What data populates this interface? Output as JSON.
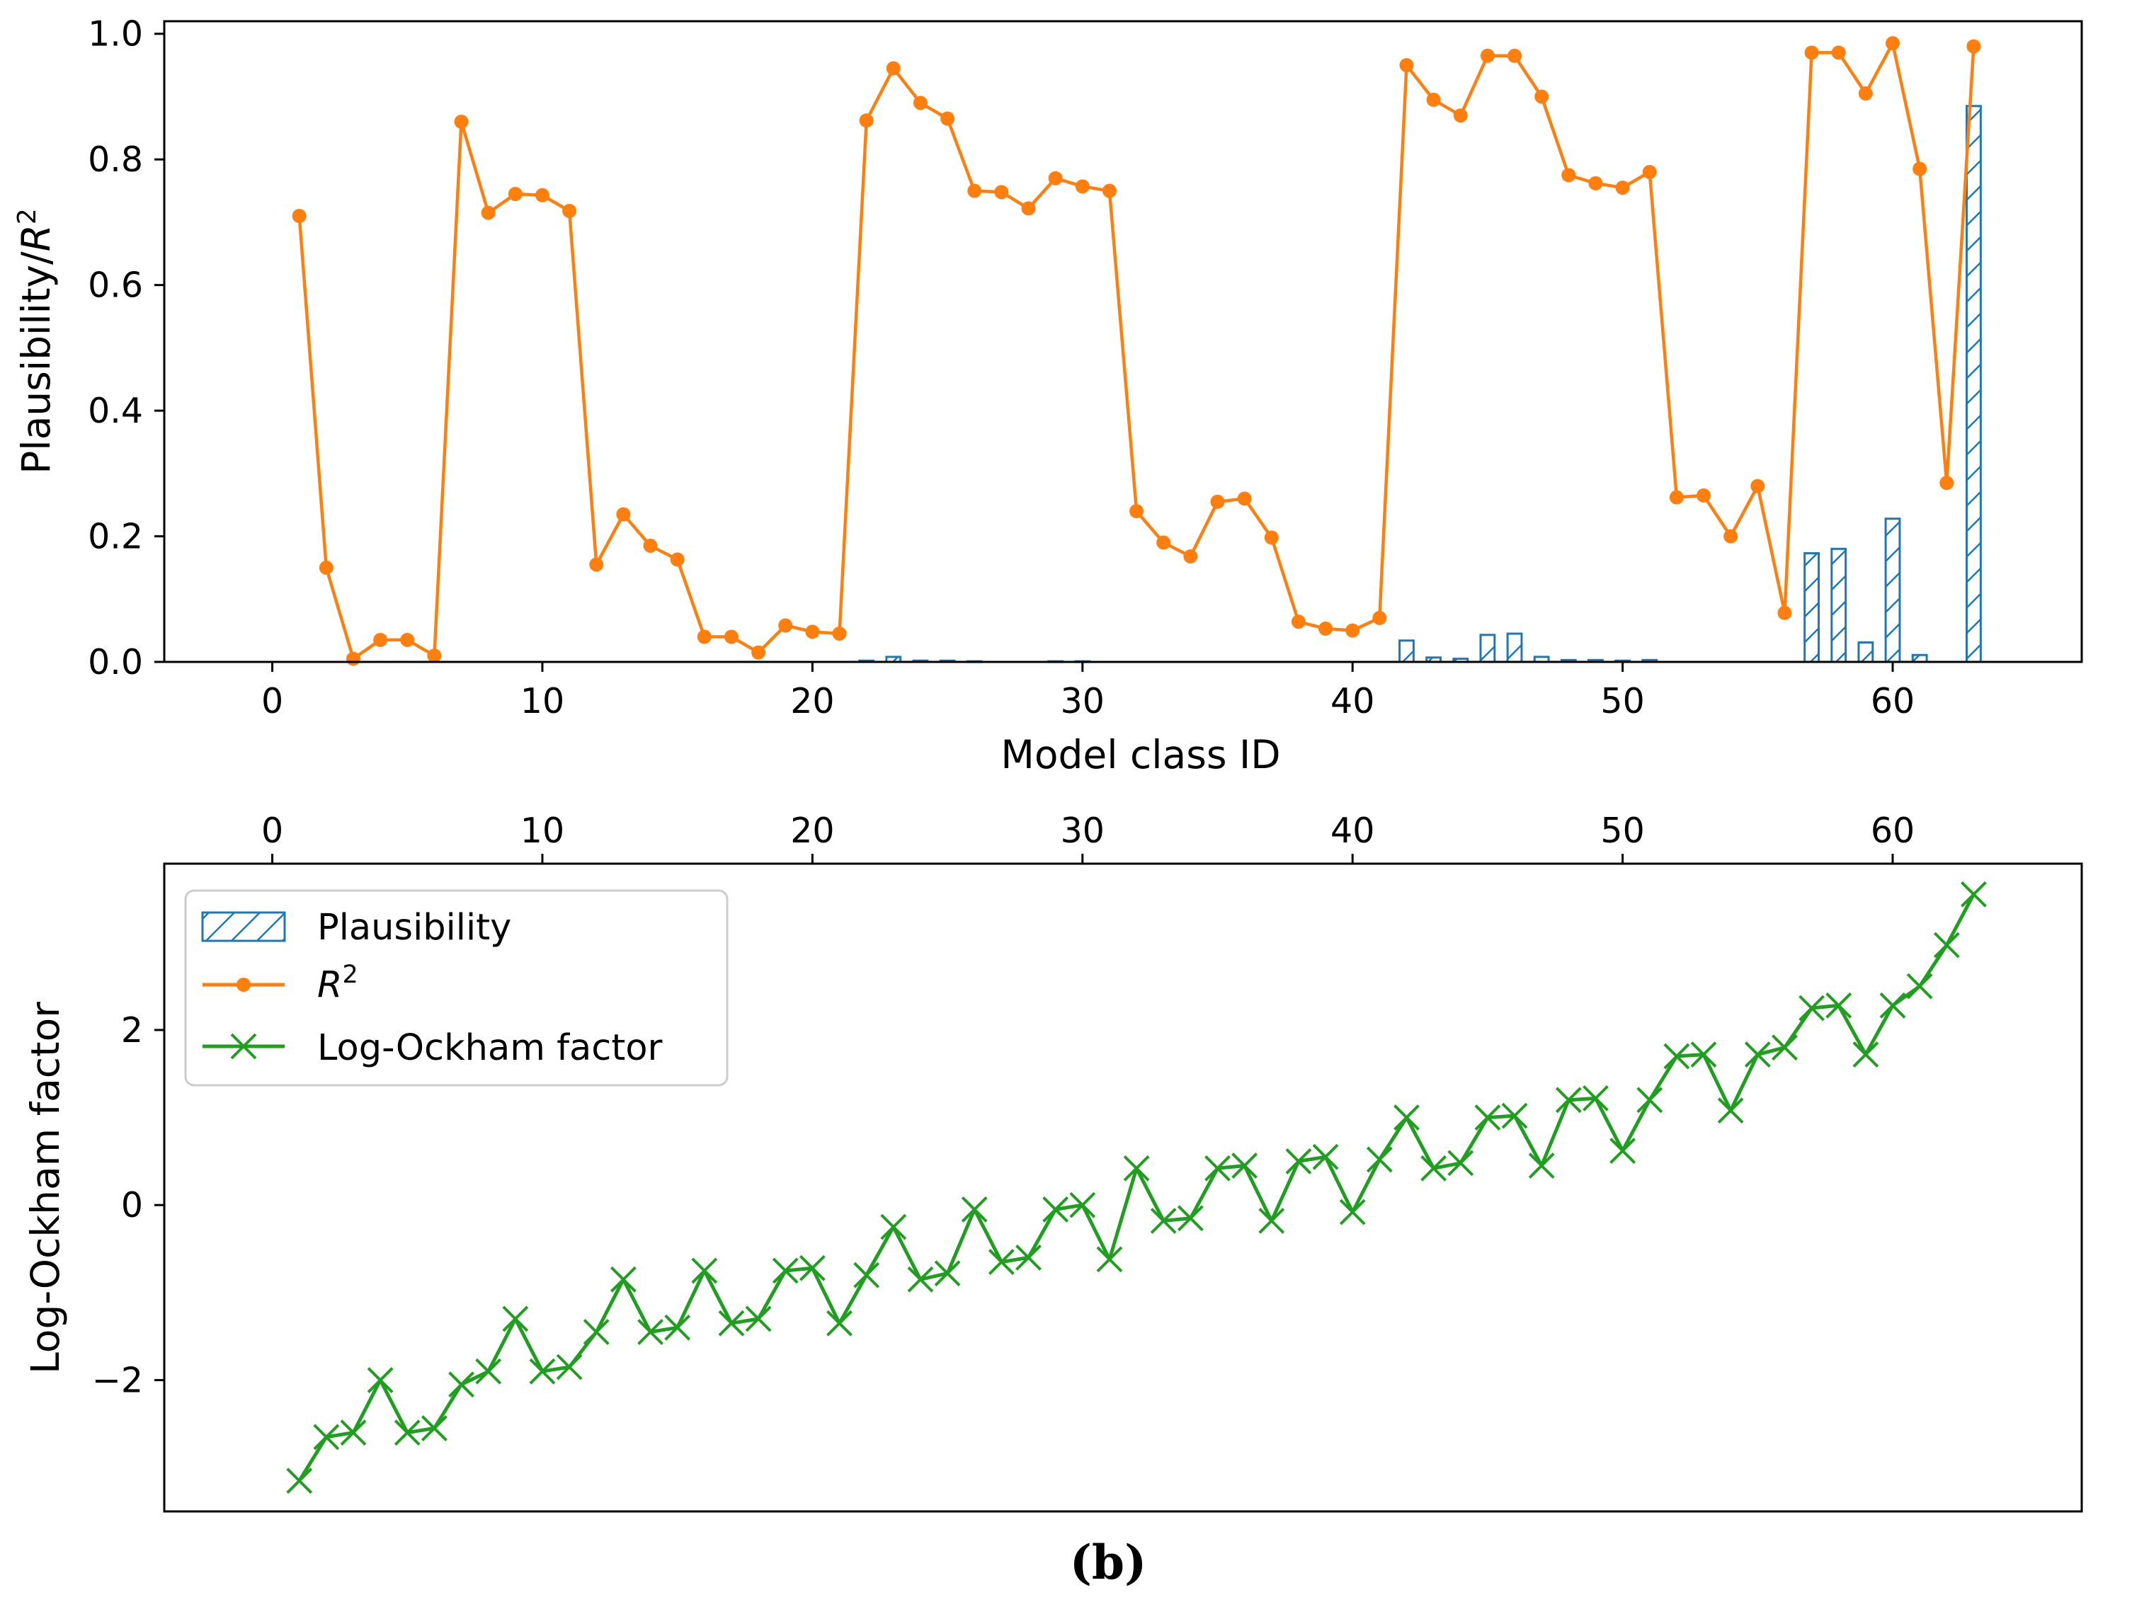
{
  "caption": "(b)",
  "colors": {
    "plausibility": "#1f77b4",
    "r2": "#ff7f0e",
    "log_ockham": "#1f9e1f"
  },
  "chart_data": [
    {
      "type": "bar+line",
      "title": "",
      "xlabel": "Model class ID",
      "ylabel": "Plausibility/R²",
      "xlim": [
        -4,
        67
      ],
      "ylim": [
        0,
        1.02
      ],
      "xticks": [
        0,
        10,
        20,
        30,
        40,
        50,
        60
      ],
      "xtick_labels": [
        "0",
        "10",
        "20",
        "30",
        "40",
        "50",
        "60"
      ],
      "yticks": [
        0.0,
        0.2,
        0.4,
        0.6,
        0.8,
        1.0
      ],
      "ytick_labels": [
        "0.0",
        "0.2",
        "0.4",
        "0.6",
        "0.8",
        "1.0"
      ],
      "x": [
        1,
        2,
        3,
        4,
        5,
        6,
        7,
        8,
        9,
        10,
        11,
        12,
        13,
        14,
        15,
        16,
        17,
        18,
        19,
        20,
        21,
        22,
        23,
        24,
        25,
        26,
        27,
        28,
        29,
        30,
        31,
        32,
        33,
        34,
        35,
        36,
        37,
        38,
        39,
        40,
        41,
        42,
        43,
        44,
        45,
        46,
        47,
        48,
        49,
        50,
        51,
        52,
        53,
        54,
        55,
        56,
        57,
        58,
        59,
        60,
        61,
        62,
        63
      ],
      "series": [
        {
          "name": "Plausibility",
          "kind": "bar",
          "values": [
            0,
            0,
            0,
            0,
            0,
            0,
            0,
            0,
            0,
            0,
            0,
            0,
            0,
            0,
            0,
            0,
            0,
            0,
            0,
            0,
            0,
            0.002,
            0.008,
            0.002,
            0.002,
            0.001,
            0,
            0,
            0.001,
            0.001,
            0,
            0,
            0,
            0,
            0,
            0,
            0,
            0,
            0,
            0,
            0,
            0.034,
            0.007,
            0.005,
            0.043,
            0.045,
            0.008,
            0.003,
            0.003,
            0.002,
            0.003,
            0,
            0,
            0,
            0,
            0,
            0.173,
            0.18,
            0.031,
            0.228,
            0.011,
            0,
            0.885
          ]
        },
        {
          "name": "R²",
          "kind": "line",
          "values": [
            0.71,
            0.15,
            0.005,
            0.035,
            0.035,
            0.01,
            0.86,
            0.715,
            0.745,
            0.743,
            0.718,
            0.155,
            0.235,
            0.185,
            0.163,
            0.04,
            0.04,
            0.015,
            0.058,
            0.048,
            0.045,
            0.862,
            0.945,
            0.89,
            0.865,
            0.75,
            0.748,
            0.722,
            0.77,
            0.757,
            0.75,
            0.24,
            0.19,
            0.168,
            0.255,
            0.26,
            0.198,
            0.064,
            0.053,
            0.05,
            0.07,
            0.95,
            0.895,
            0.87,
            0.965,
            0.965,
            0.9,
            0.775,
            0.762,
            0.755,
            0.78,
            0.262,
            0.265,
            0.2,
            0.28,
            0.078,
            0.97,
            0.97,
            0.905,
            0.985,
            0.785,
            0.285,
            0.98
          ]
        }
      ]
    },
    {
      "type": "line",
      "title": "",
      "xlabel": "",
      "ylabel": "Log-Ockham factor",
      "xaxis_position": "top",
      "xlim": [
        -4,
        67
      ],
      "ylim": [
        -3.5,
        3.9
      ],
      "xticks": [
        0,
        10,
        20,
        30,
        40,
        50,
        60
      ],
      "xtick_labels": [
        "0",
        "10",
        "20",
        "30",
        "40",
        "50",
        "60"
      ],
      "yticks": [
        -2,
        0,
        2
      ],
      "ytick_labels": [
        "−2",
        "0",
        "2"
      ],
      "legend": {
        "location": "upper-left",
        "entries": [
          "Plausibility",
          "R²",
          "Log-Ockham factor"
        ]
      },
      "x": [
        1,
        2,
        3,
        4,
        5,
        6,
        7,
        8,
        9,
        10,
        11,
        12,
        13,
        14,
        15,
        16,
        17,
        18,
        19,
        20,
        21,
        22,
        23,
        24,
        25,
        26,
        27,
        28,
        29,
        30,
        31,
        32,
        33,
        34,
        35,
        36,
        37,
        38,
        39,
        40,
        41,
        42,
        43,
        44,
        45,
        46,
        47,
        48,
        49,
        50,
        51,
        52,
        53,
        54,
        55,
        56,
        57,
        58,
        59,
        60,
        61,
        62,
        63
      ],
      "series": [
        {
          "name": "Log-Ockham factor",
          "kind": "line",
          "values": [
            -3.15,
            -2.65,
            -2.6,
            -2.0,
            -2.6,
            -2.55,
            -2.05,
            -1.9,
            -1.3,
            -1.9,
            -1.85,
            -1.45,
            -0.85,
            -1.45,
            -1.4,
            -0.75,
            -1.35,
            -1.3,
            -0.75,
            -0.72,
            -1.35,
            -0.8,
            -0.25,
            -0.85,
            -0.78,
            -0.05,
            -0.65,
            -0.6,
            -0.05,
            0.0,
            -0.62,
            0.42,
            -0.18,
            -0.15,
            0.42,
            0.45,
            -0.18,
            0.5,
            0.55,
            -0.08,
            0.52,
            1.0,
            0.42,
            0.48,
            1.0,
            1.02,
            0.45,
            1.2,
            1.22,
            0.62,
            1.2,
            1.7,
            1.72,
            1.08,
            1.72,
            1.8,
            2.25,
            2.28,
            1.72,
            2.28,
            2.5,
            2.97,
            3.55
          ]
        }
      ]
    }
  ]
}
